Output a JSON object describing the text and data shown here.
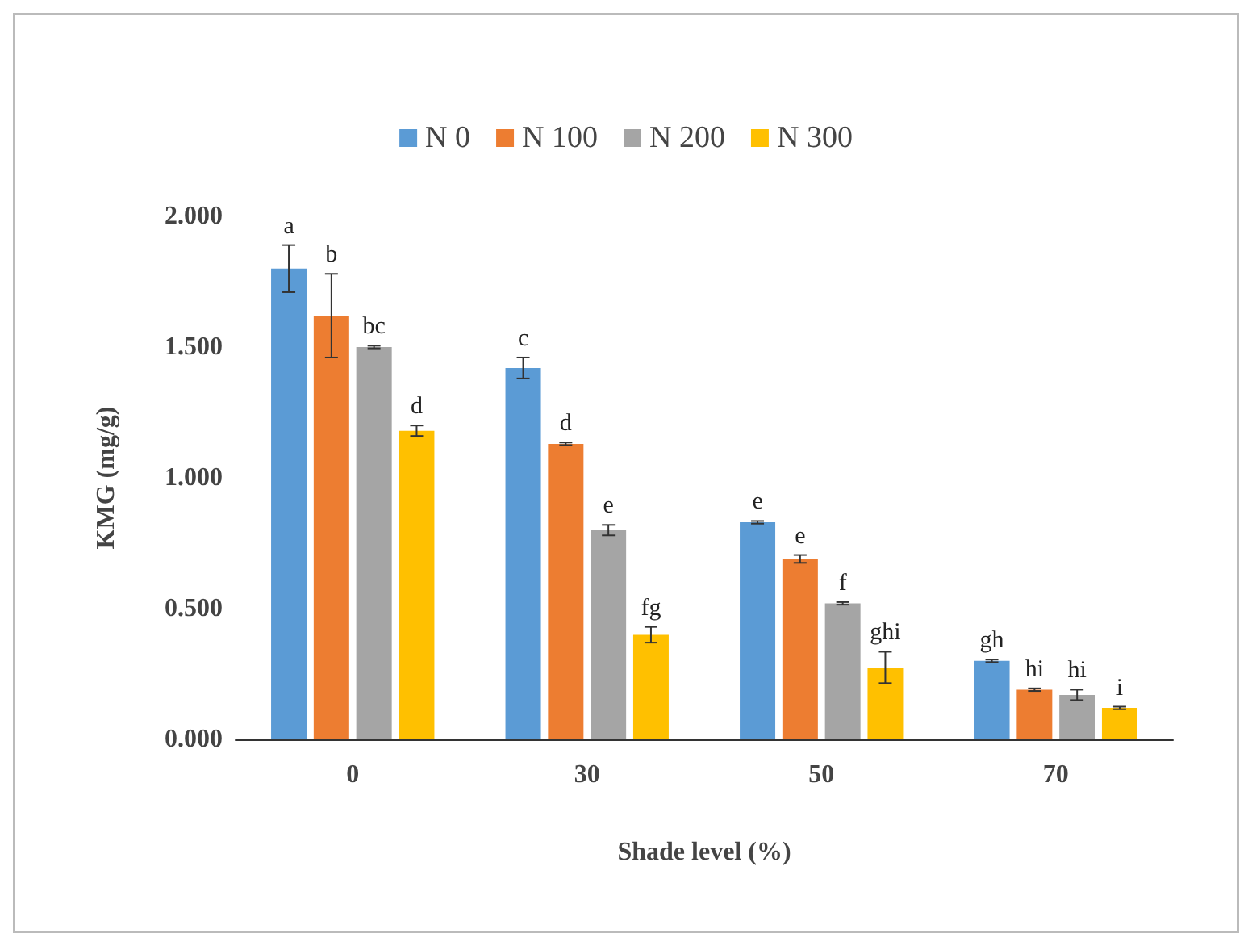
{
  "chart_data": {
    "type": "bar",
    "xlabel": "Shade level (%)",
    "ylabel": "KMG (mg/g)",
    "categories": [
      "0",
      "30",
      "50",
      "70"
    ],
    "series": [
      {
        "name": "N 0",
        "color": "#5b9bd5",
        "values": [
          1.8,
          1.42,
          0.83,
          0.3
        ],
        "errors": [
          0.09,
          0.04,
          0.005,
          0.005
        ],
        "value_labels": [
          "a",
          "c",
          "e",
          "gh"
        ]
      },
      {
        "name": "N 100",
        "color": "#ed7d31",
        "values": [
          1.62,
          1.13,
          0.69,
          0.19
        ],
        "errors": [
          0.16,
          0.005,
          0.015,
          0.005
        ],
        "value_labels": [
          "b",
          "d",
          "e",
          "hi"
        ]
      },
      {
        "name": "N 200",
        "color": "#a5a5a5",
        "values": [
          1.5,
          0.8,
          0.52,
          0.17
        ],
        "errors": [
          0.005,
          0.02,
          0.005,
          0.02
        ],
        "value_labels": [
          "bc",
          "e",
          "f",
          "hi"
        ]
      },
      {
        "name": "N 300",
        "color": "#ffc000",
        "values": [
          1.18,
          0.4,
          0.275,
          0.12
        ],
        "errors": [
          0.02,
          0.03,
          0.06,
          0.005
        ],
        "value_labels": [
          "d",
          "fg",
          "ghi",
          "i"
        ]
      }
    ],
    "ylim": [
      0,
      2
    ],
    "yticks": [
      {
        "value": 0,
        "label": "0.000"
      },
      {
        "value": 0.5,
        "label": "0.500"
      },
      {
        "value": 1,
        "label": "1.000"
      },
      {
        "value": 1.5,
        "label": "1.500"
      },
      {
        "value": 2,
        "label": "2.000"
      }
    ],
    "grid": false,
    "legend": "top"
  }
}
